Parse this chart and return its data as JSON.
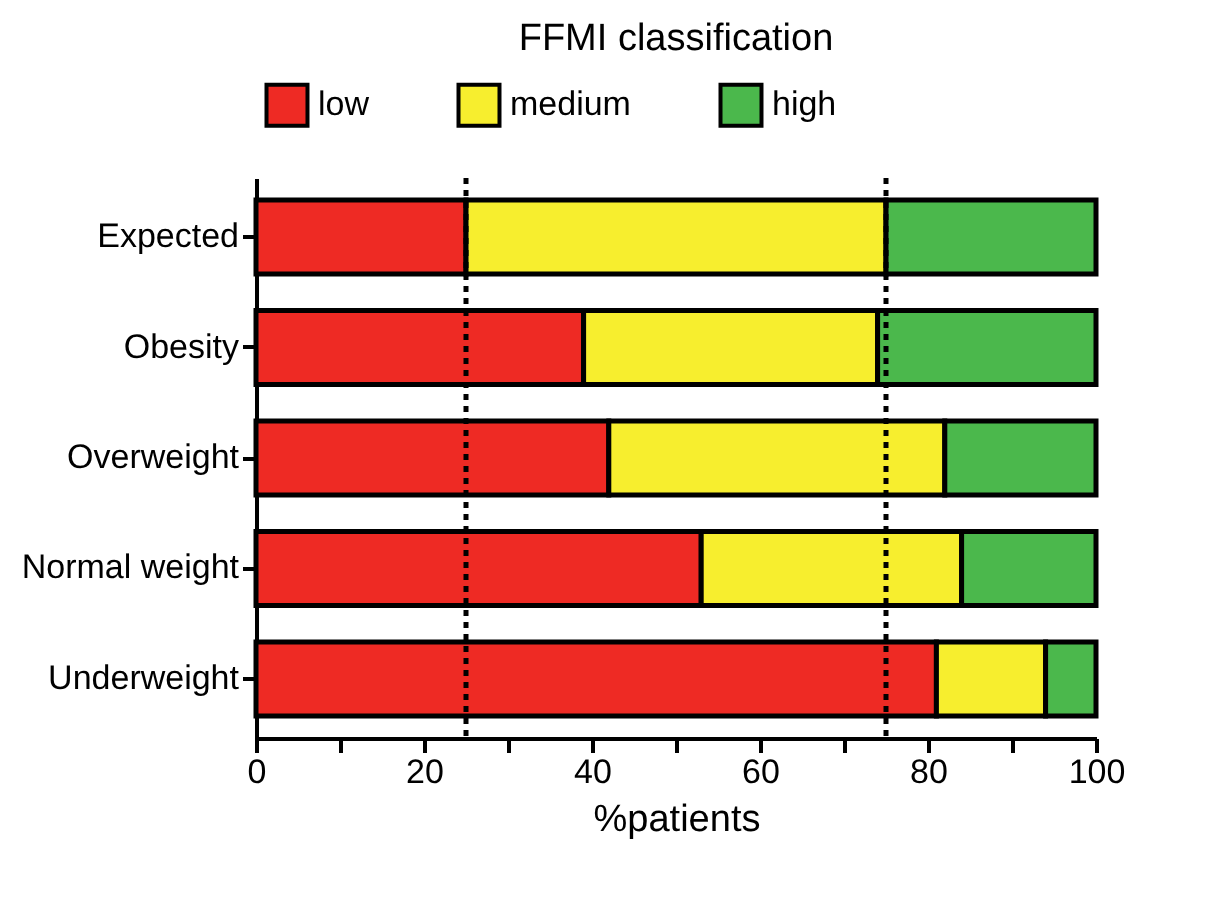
{
  "chart_data": {
    "type": "bar",
    "orientation": "horizontal",
    "stacked": true,
    "title": "FFMI classification",
    "xlabel": "%patients",
    "categories": [
      "Expected",
      "Obesity",
      "Overweight",
      "Normal weight",
      "Underweight"
    ],
    "series": [
      {
        "name": "low",
        "color": "#ee2a24",
        "values": [
          25,
          39,
          42,
          53,
          81
        ]
      },
      {
        "name": "medium",
        "color": "#f7ee2e",
        "values": [
          50,
          35,
          40,
          31,
          13
        ]
      },
      {
        "name": "high",
        "color": "#4bb84c",
        "values": [
          25,
          26,
          18,
          16,
          6
        ]
      }
    ],
    "xlim": [
      0,
      100
    ],
    "xticks": [
      0,
      {
        "value": 10,
        "label": null
      },
      20,
      {
        "value": 30,
        "label": null
      },
      40,
      {
        "value": 50,
        "label": null
      },
      60,
      {
        "value": 70,
        "label": null
      },
      80,
      {
        "value": 90,
        "label": null
      },
      100
    ],
    "ref_lines": [
      {
        "axis": "x",
        "value": 25,
        "line_style": "dotted"
      },
      {
        "axis": "x",
        "value": 75,
        "line_style": "dotted"
      }
    ],
    "legend": "top",
    "grid": false
  }
}
